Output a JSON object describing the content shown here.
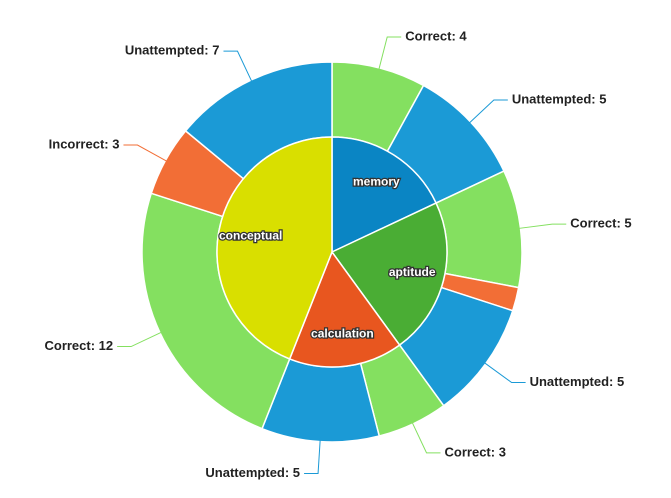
{
  "chart_data": {
    "type": "sunburst",
    "categories": [
      "memory",
      "aptitude",
      "calculation",
      "conceptual"
    ],
    "values": [
      9,
      11,
      8,
      22
    ],
    "colors": [
      "#0a85c4",
      "#4aad34",
      "#e8561f",
      "#d9df00"
    ],
    "outer": {
      "values": [
        4,
        5,
        5,
        1,
        5,
        3,
        5,
        12,
        3,
        7
      ],
      "value_labels": [
        "Correct: 4",
        "Unattempted: 5",
        "Correct: 5",
        null,
        "Unattempted: 5",
        "Correct: 3",
        "Unattempted: 5",
        "Correct: 12",
        "Incorrect: 3",
        "Unattempted: 7"
      ],
      "colors": [
        "#84e060",
        "#1b9ad6",
        "#84e060",
        "#f26e36",
        "#1b9ad6",
        "#84e060",
        "#1b9ad6",
        "#84e060",
        "#f26e36",
        "#1b9ad6"
      ]
    }
  }
}
